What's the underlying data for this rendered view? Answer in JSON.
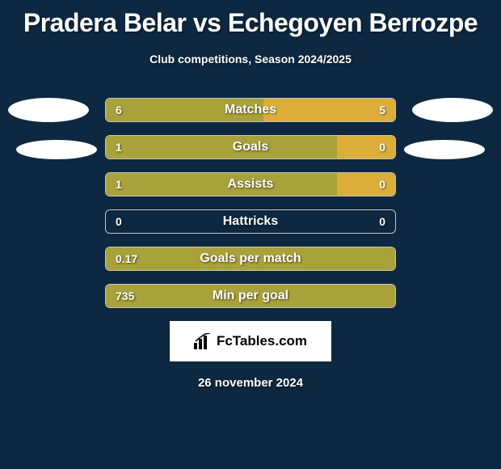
{
  "background_color": "#0d2840",
  "title": "Pradera Belar vs Echegoyen Berrozpe",
  "title_color": "#ffffff",
  "title_fontsize": 32,
  "subtitle": "Club competitions, Season 2024/2025",
  "subtitle_color": "#ffffff",
  "subtitle_fontsize": 14,
  "left_color": "#a9a13a",
  "right_color": "#dcad39",
  "border_color": "#c5c5c5",
  "bars": [
    {
      "label": "Matches",
      "left_value": "6",
      "right_value": "5",
      "left_width_pct": 54.5,
      "right_width_pct": 45.5
    },
    {
      "label": "Goals",
      "left_value": "1",
      "right_value": "0",
      "left_width_pct": 80,
      "right_width_pct": 20
    },
    {
      "label": "Assists",
      "left_value": "1",
      "right_value": "0",
      "left_width_pct": 80,
      "right_width_pct": 20
    },
    {
      "label": "Hattricks",
      "left_value": "0",
      "right_value": "0",
      "left_width_pct": 0,
      "right_width_pct": 0
    },
    {
      "label": "Goals per match",
      "left_value": "0.17",
      "right_value": "",
      "left_width_pct": 100,
      "right_width_pct": 0
    },
    {
      "label": "Min per goal",
      "left_value": "735",
      "right_value": "",
      "left_width_pct": 100,
      "right_width_pct": 0
    }
  ],
  "logo_text": "FcTables.com",
  "date_text": "26 november 2024",
  "avatar_color": "#ffffff"
}
